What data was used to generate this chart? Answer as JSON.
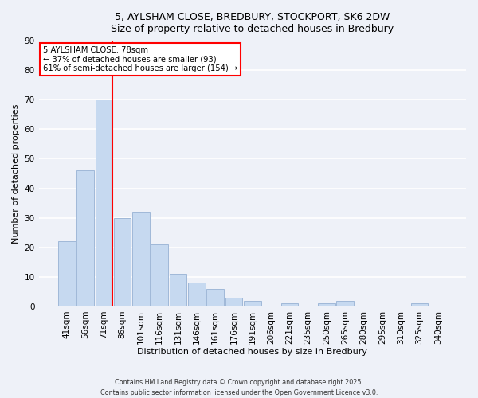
{
  "title_line1": "5, AYLSHAM CLOSE, BREDBURY, STOCKPORT, SK6 2DW",
  "title_line2": "Size of property relative to detached houses in Bredbury",
  "xlabel": "Distribution of detached houses by size in Bredbury",
  "ylabel": "Number of detached properties",
  "bar_labels": [
    "41sqm",
    "56sqm",
    "71sqm",
    "86sqm",
    "101sqm",
    "116sqm",
    "131sqm",
    "146sqm",
    "161sqm",
    "176sqm",
    "191sqm",
    "206sqm",
    "221sqm",
    "235sqm",
    "250sqm",
    "265sqm",
    "280sqm",
    "295sqm",
    "310sqm",
    "325sqm",
    "340sqm"
  ],
  "bar_values": [
    22,
    46,
    70,
    30,
    32,
    21,
    11,
    8,
    6,
    3,
    2,
    0,
    1,
    0,
    1,
    2,
    0,
    0,
    0,
    1,
    0
  ],
  "bar_color": "#c6d9f0",
  "bar_edge_color": "#a0b8d8",
  "vline_color": "red",
  "annotation_title": "5 AYLSHAM CLOSE: 78sqm",
  "annotation_line2": "← 37% of detached houses are smaller (93)",
  "annotation_line3": "61% of semi-detached houses are larger (154) →",
  "annotation_box_facecolor": "white",
  "annotation_box_edgecolor": "red",
  "ylim": [
    0,
    90
  ],
  "yticks": [
    0,
    10,
    20,
    30,
    40,
    50,
    60,
    70,
    80,
    90
  ],
  "footer_line1": "Contains HM Land Registry data © Crown copyright and database right 2025.",
  "footer_line2": "Contains public sector information licensed under the Open Government Licence v3.0.",
  "background_color": "#eef1f8",
  "grid_color": "#ffffff"
}
